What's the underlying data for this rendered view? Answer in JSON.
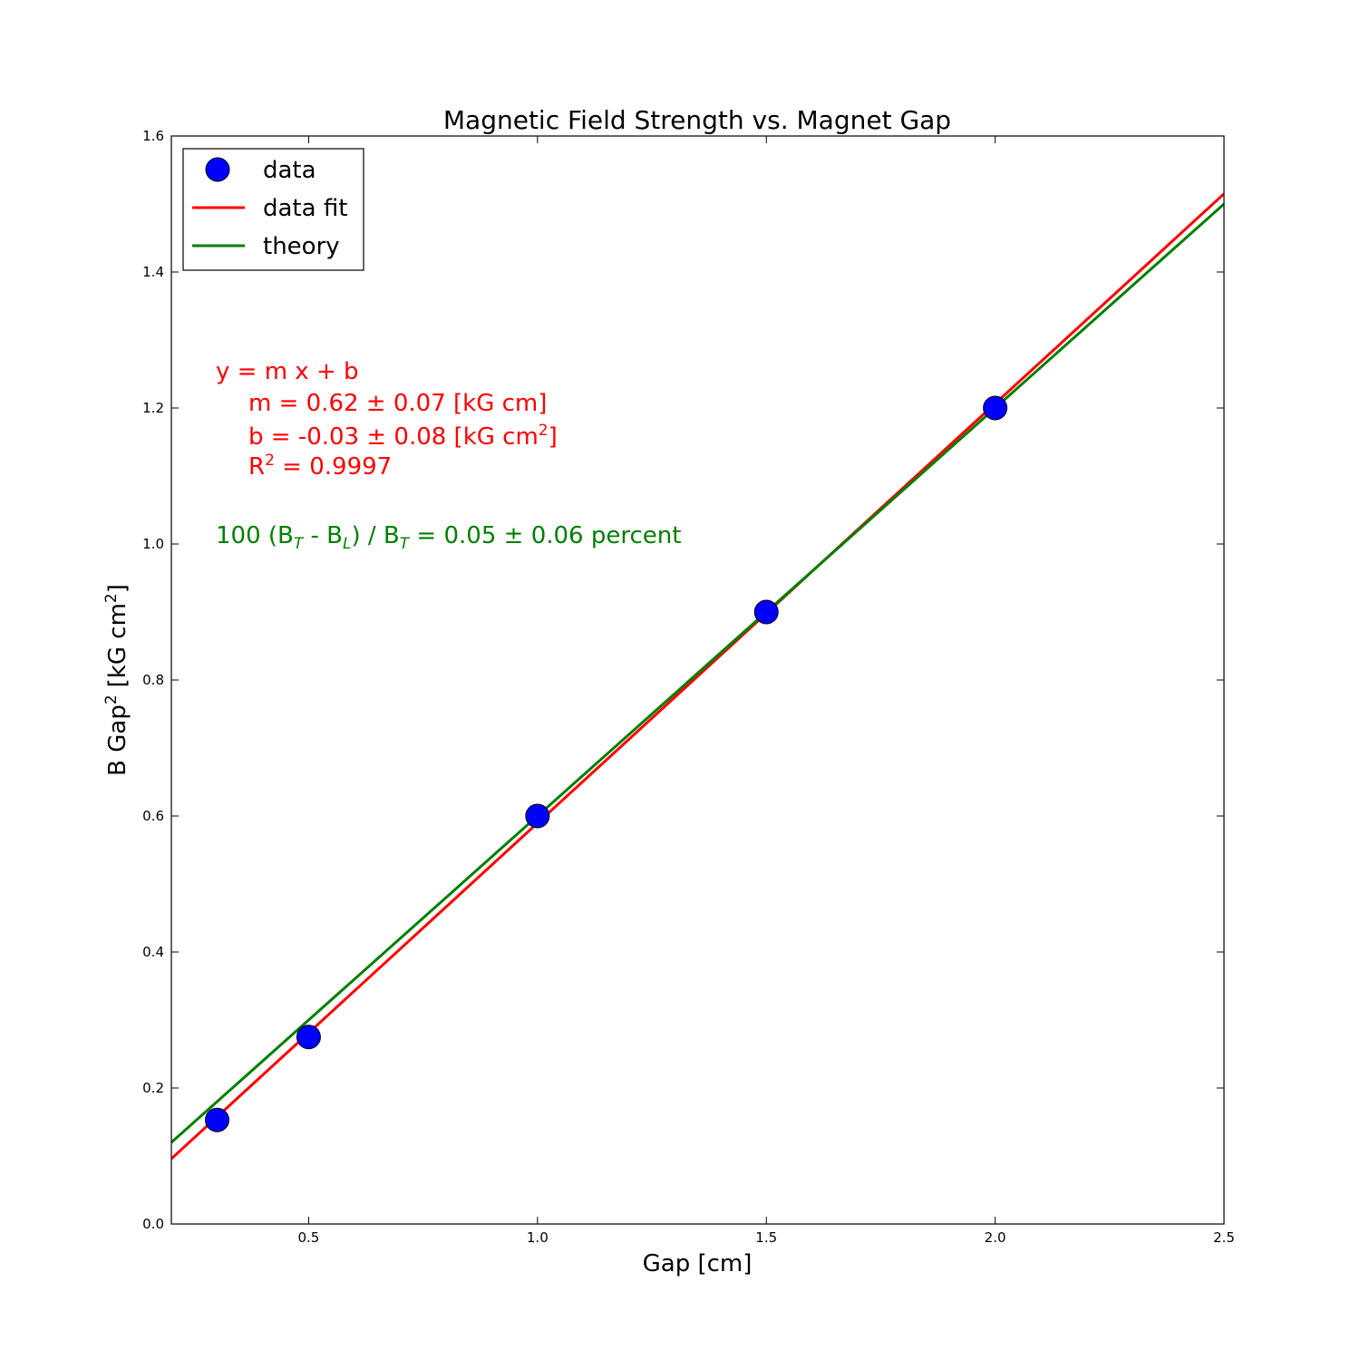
{
  "chart_data": {
    "type": "scatter",
    "title": "Magnetic Field Strength vs. Magnet Gap",
    "xlabel": "Gap [cm]",
    "ylabel_main": "B Gap",
    "ylabel_sup": "2",
    "ylabel_unit": "[kG cm",
    "ylabel_unit_sup": "2",
    "ylabel_close": "]",
    "xlim": [
      0.2,
      2.5
    ],
    "ylim": [
      0.0,
      1.6
    ],
    "xticks": [
      "0.5",
      "1.0",
      "1.5",
      "2.0",
      "2.5"
    ],
    "xtick_values": [
      0.5,
      1.0,
      1.5,
      2.0,
      2.5
    ],
    "yticks": [
      "0.0",
      "0.2",
      "0.4",
      "0.6",
      "0.8",
      "1.0",
      "1.2",
      "1.4",
      "1.6"
    ],
    "ytick_values": [
      0.0,
      0.2,
      0.4,
      0.6,
      0.8,
      1.0,
      1.2,
      1.4,
      1.6
    ],
    "grid": false,
    "legend_placement": "top-left",
    "series": [
      {
        "name": "data",
        "kind": "points",
        "color": "#0000ff",
        "x": [
          0.3,
          0.5,
          1.0,
          1.5,
          2.0
        ],
        "y": [
          0.153,
          0.275,
          0.6,
          0.9,
          1.2
        ]
      },
      {
        "name": "data fit",
        "kind": "line",
        "color": "#ff0000",
        "x": [
          0.2,
          2.5
        ],
        "y": [
          0.096,
          1.515
        ]
      },
      {
        "name": "theory",
        "kind": "line",
        "color": "#008000",
        "x": [
          0.2,
          2.5
        ],
        "y": [
          0.12,
          1.5
        ]
      }
    ],
    "annotations": {
      "fit_color": "#ff0000",
      "theory_color": "#008000",
      "fit_equation": "y = m x + b",
      "fit_m": "m = 0.62 ± 0.07 [kG cm]",
      "fit_b_pre": "b = -0.03 ± 0.08 [kG cm",
      "fit_b_sup": "2",
      "fit_b_post": "]",
      "fit_r_pre": "R",
      "fit_r_sup": "2",
      "fit_r_post": " = 0.9997",
      "comp_1": "100 (B",
      "comp_sub_t1": "T",
      "comp_2": " - B",
      "comp_sub_l": "L",
      "comp_3": ") / B",
      "comp_sub_t2": "T",
      "comp_4": " = 0.05 ± 0.06 percent"
    }
  }
}
